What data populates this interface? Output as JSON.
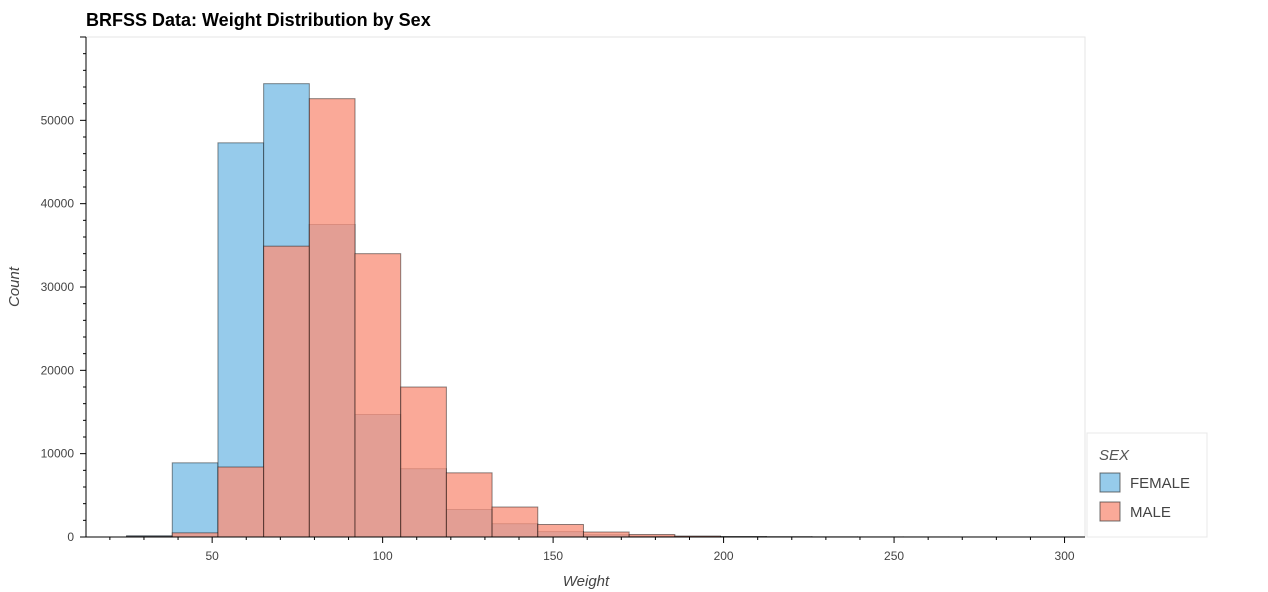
{
  "chart_data": {
    "type": "bar",
    "title": "BRFSS Data: Weight Distribution by Sex",
    "xlabel": "Weight",
    "ylabel": "Count",
    "xlim": [
      13,
      306
    ],
    "ylim": [
      0,
      60000
    ],
    "x_ticks": [
      50,
      100,
      150,
      200,
      250,
      300
    ],
    "y_ticks": [
      0,
      10000,
      20000,
      30000,
      40000,
      50000
    ],
    "bin_edges": [
      24.9,
      38.3,
      51.7,
      65.1,
      78.5,
      91.9,
      105.3,
      118.7,
      132.1,
      145.5,
      158.9,
      172.3,
      185.7,
      199.1,
      212.5,
      225.9,
      239.3,
      252.7,
      266.1,
      279.5,
      292.9
    ],
    "legend_title": "SEX",
    "legend_position": "right",
    "grid": false,
    "series": [
      {
        "name": "FEMALE",
        "color": "#7fc0e6",
        "values": [
          150,
          8900,
          47300,
          54400,
          37500,
          14700,
          8200,
          3300,
          1600,
          650,
          280,
          120,
          50,
          30,
          20,
          10,
          5,
          5,
          0,
          0
        ]
      },
      {
        "name": "MALE",
        "color": "#f9917b",
        "values": [
          80,
          500,
          8400,
          34900,
          52600,
          34000,
          18000,
          7700,
          3600,
          1500,
          600,
          300,
          120,
          60,
          30,
          15,
          10,
          5,
          5,
          0
        ]
      }
    ]
  }
}
